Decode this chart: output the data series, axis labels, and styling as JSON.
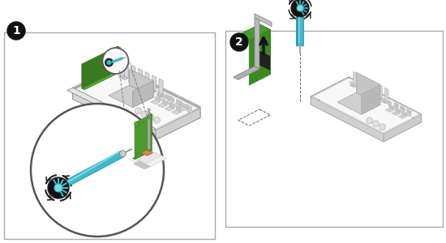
{
  "fig_width": 5.5,
  "fig_height": 3.0,
  "dpi": 100,
  "bg_color": "#ffffff",
  "green_color": "#5aaa3a",
  "green_dark": "#3a7a20",
  "teal_color": "#40b8c8",
  "teal_dark": "#2090a0",
  "teal_light": "#80d8e8",
  "black": "#111111",
  "dark_gray": "#444444",
  "mid_gray": "#888888",
  "light_gray": "#cccccc",
  "very_light_gray": "#eeeeee",
  "white": "#ffffff",
  "orange_color": "#d4874e",
  "line_color": "#555555",
  "chassis_face": "#e8e8e8",
  "chassis_top": "#f0f0f0",
  "chassis_side": "#d8d8d8",
  "board_color": "#f5f5f5"
}
